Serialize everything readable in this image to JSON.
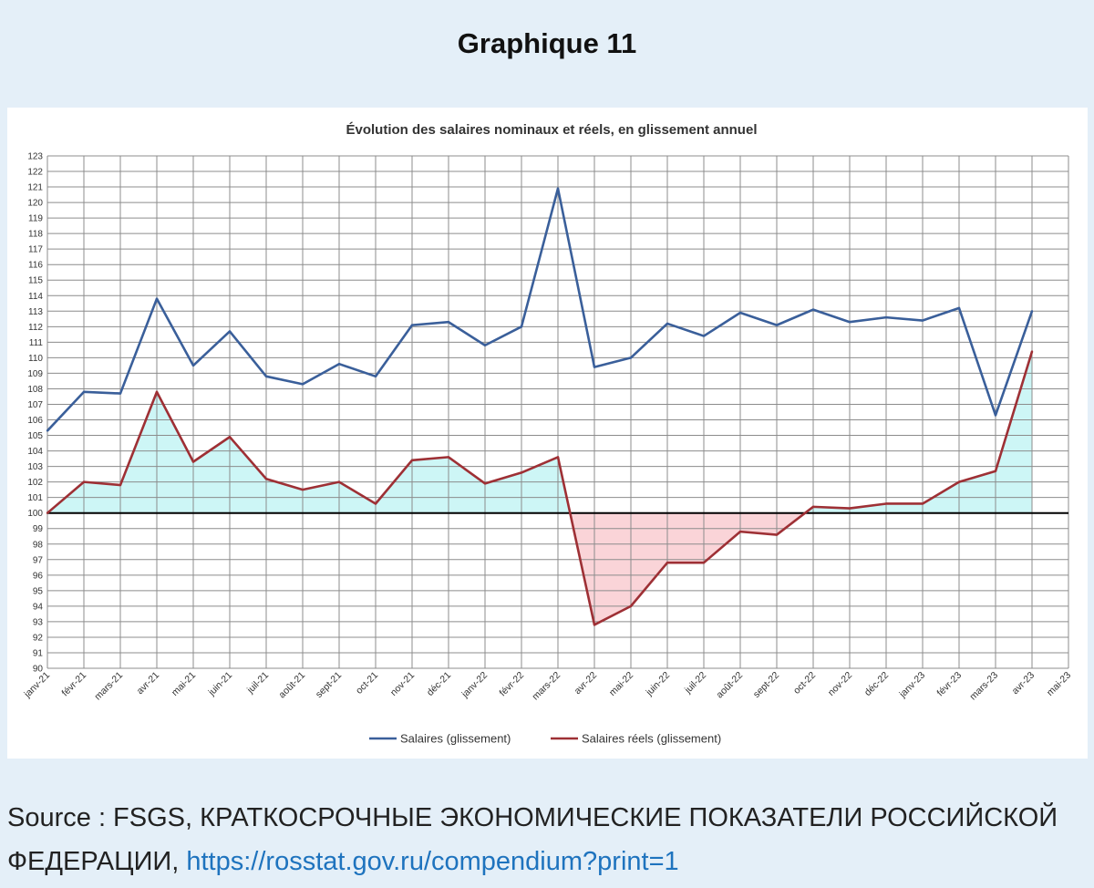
{
  "page": {
    "heading": "Graphique 11",
    "source_prefix": "Source : FSGS, КРАТКОСРОЧНЫЕ ЭКОНОМИЧЕСКИЕ ПОКАЗАТЕЛИ РОССИЙСКОЙ ФЕДЕРАЦИИ, ",
    "source_link": "https://rosstat.gov.ru/compendium?print=1"
  },
  "chart_data": {
    "type": "line",
    "title": "Évolution des salaires nominaux et réels, en glissement annuel",
    "xlabel": "",
    "ylabel": "",
    "categories": [
      "janv-21",
      "févr-21",
      "mars-21",
      "avr-21",
      "mai-21",
      "juin-21",
      "juil-21",
      "août-21",
      "sept-21",
      "oct-21",
      "nov-21",
      "déc-21",
      "janv-22",
      "févr-22",
      "mars-22",
      "avr-22",
      "mai-22",
      "juin-22",
      "juil-22",
      "août-22",
      "sept-22",
      "oct-22",
      "nov-22",
      "déc-22",
      "janv-23",
      "févr-23",
      "mars-23",
      "avr-23",
      "mai-23"
    ],
    "ylim": [
      90,
      123
    ],
    "ytick_step": 1,
    "baseline": 100,
    "grid": true,
    "legend_position": "bottom",
    "series": [
      {
        "name": "Salaires (glissement)",
        "color": "#3a5f9a",
        "values": [
          105.3,
          107.8,
          107.7,
          113.8,
          109.5,
          111.7,
          108.8,
          108.3,
          109.6,
          108.8,
          112.1,
          112.3,
          110.8,
          112.0,
          120.9,
          109.4,
          110.0,
          112.2,
          111.4,
          112.9,
          112.1,
          113.1,
          112.3,
          112.6,
          112.4,
          113.2,
          106.3,
          113.0,
          null
        ]
      },
      {
        "name": "Salaires réels (glissement)",
        "color": "#9e3035",
        "values": [
          100.0,
          102.0,
          101.8,
          107.8,
          103.3,
          104.9,
          102.2,
          101.5,
          102.0,
          100.6,
          103.4,
          103.6,
          101.9,
          102.6,
          103.6,
          92.8,
          94.0,
          96.8,
          96.8,
          98.8,
          98.6,
          100.4,
          100.3,
          100.6,
          100.6,
          102.0,
          102.7,
          110.4,
          null
        ]
      }
    ],
    "fill_colors": {
      "above_baseline": "#cdf6f6",
      "below_baseline": "#fad4d8"
    }
  }
}
